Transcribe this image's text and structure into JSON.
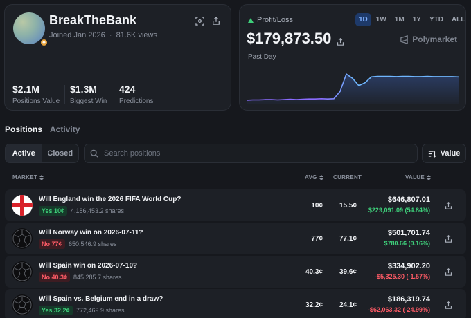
{
  "profile": {
    "username": "BreakTheBank",
    "joined": "Joined Jan 2026",
    "views": "81.6K views",
    "stats": [
      {
        "value": "$2.1M",
        "label": "Positions Value"
      },
      {
        "value": "$1.3M",
        "label": "Biggest Win"
      },
      {
        "value": "424",
        "label": "Predictions"
      }
    ]
  },
  "pnl": {
    "label": "Profit/Loss",
    "value": "$179,873.50",
    "period_label": "Past Day",
    "ranges": [
      "1D",
      "1W",
      "1M",
      "1Y",
      "YTD",
      "ALL"
    ],
    "active_range": "1D",
    "brand": "Polymarket",
    "colors": {
      "low": "#8b6cff",
      "high": "#6fb6ff"
    },
    "series": [
      0.05,
      0.06,
      0.06,
      0.07,
      0.07,
      0.06,
      0.07,
      0.08,
      0.07,
      0.08,
      0.09,
      0.09,
      0.1,
      0.09,
      0.1,
      0.35,
      0.95,
      0.8,
      0.55,
      0.65,
      0.85,
      0.87,
      0.87,
      0.87,
      0.86,
      0.87,
      0.87,
      0.86,
      0.86,
      0.87,
      0.86,
      0.86,
      0.86,
      0.86,
      0.85
    ]
  },
  "tabs": [
    {
      "label": "Positions",
      "active": true
    },
    {
      "label": "Activity",
      "active": false
    }
  ],
  "filters": {
    "active": "Active",
    "closed": "Closed"
  },
  "search": {
    "placeholder": "Search positions"
  },
  "sort": {
    "label": "Value"
  },
  "table": {
    "headers": {
      "market": "MARKET",
      "avg": "AVG",
      "current": "CURRENT",
      "value": "VALUE"
    },
    "rows": [
      {
        "question": "Will England win the 2026 FIFA World Cup?",
        "outcome": "Yes 10¢",
        "outcome_type": "yes",
        "shares": "4,186,453.2 shares",
        "avg": "10¢",
        "current": "15.5¢",
        "value": "$646,807.01",
        "change": "$229,091.09 (54.84%)",
        "change_type": "pos",
        "flag": "england"
      },
      {
        "question": "Will Norway win on 2026-07-11?",
        "outcome": "No 77¢",
        "outcome_type": "no",
        "shares": "650,546.9 shares",
        "avg": "77¢",
        "current": "77.1¢",
        "value": "$501,701.74",
        "change": "$780.66 (0.16%)",
        "change_type": "pos",
        "flag": "ball"
      },
      {
        "question": "Will Spain win on 2026-07-10?",
        "outcome": "No 40.3¢",
        "outcome_type": "no",
        "shares": "845,285.7 shares",
        "avg": "40.3¢",
        "current": "39.6¢",
        "value": "$334,902.20",
        "change": "-$5,325.30 (-1.57%)",
        "change_type": "neg",
        "flag": "ball"
      },
      {
        "question": "Will Spain vs. Belgium end in a draw?",
        "outcome": "Yes 32.2¢",
        "outcome_type": "yes",
        "shares": "772,469.9 shares",
        "avg": "32.2¢",
        "current": "24.1¢",
        "value": "$186,319.74",
        "change": "-$62,063.32 (-24.99%)",
        "change_type": "neg",
        "flag": "ball"
      }
    ]
  }
}
